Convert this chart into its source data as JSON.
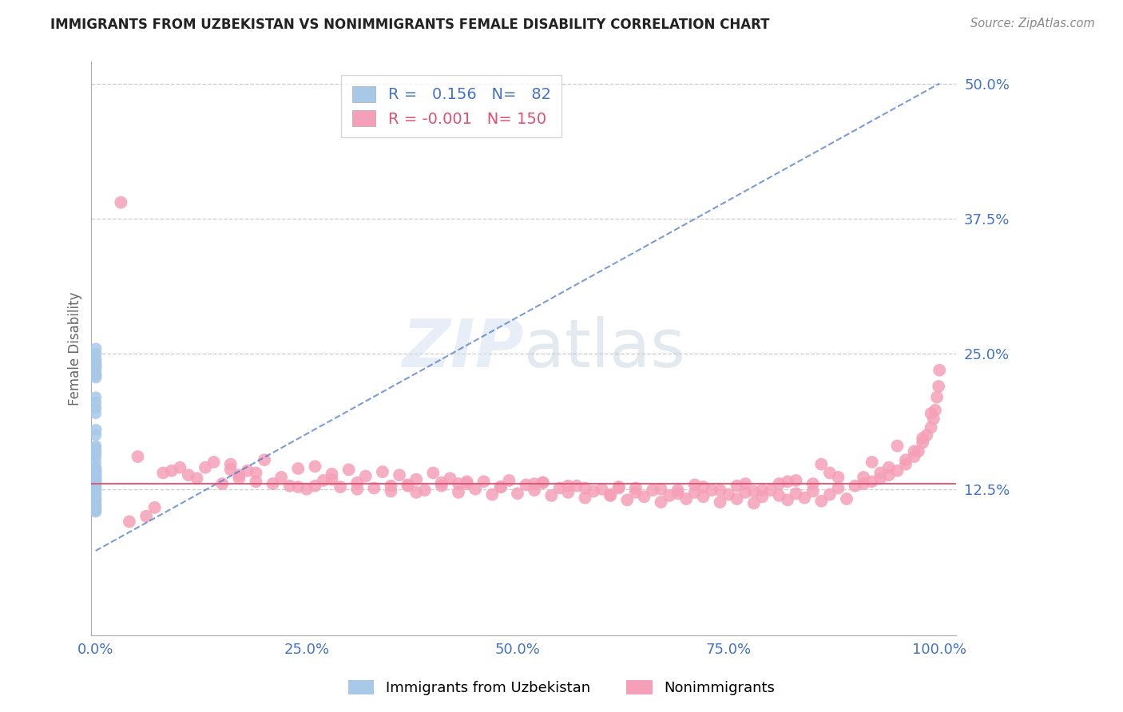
{
  "title": "IMMIGRANTS FROM UZBEKISTAN VS NONIMMIGRANTS FEMALE DISABILITY CORRELATION CHART",
  "source": "Source: ZipAtlas.com",
  "ylabel": "Female Disability",
  "r_immig": 0.156,
  "n_immig": 82,
  "r_nonimmig": -0.001,
  "n_nonimmig": 150,
  "xlim": [
    -0.005,
    1.02
  ],
  "ylim": [
    -0.01,
    0.52
  ],
  "yticks": [
    0.125,
    0.25,
    0.375,
    0.5
  ],
  "ytick_labels": [
    "12.5%",
    "25.0%",
    "37.5%",
    "50.0%"
  ],
  "xticks": [
    0,
    0.25,
    0.5,
    0.75,
    1.0
  ],
  "xtick_labels": [
    "0.0%",
    "25.0%",
    "50.0%",
    "75.0%",
    "100.0%"
  ],
  "immig_color": "#a8c8e8",
  "nonimmig_color": "#f5a0b8",
  "immig_line_color": "#4472c4",
  "nonimmig_line_color": "#e05070",
  "grid_color": "#cccccc",
  "background_color": "#ffffff",
  "title_color": "#222222",
  "axis_label_color": "#4472c4",
  "source_color": "#888888",
  "ylabel_color": "#666666",
  "watermark_color": "#d0dff0",
  "immig_scatter_x": [
    0.0002,
    0.0003,
    0.0001,
    0.0004,
    0.0002,
    0.0001,
    0.0002,
    0.0003,
    0.0001,
    0.0002,
    0.0003,
    0.0001,
    0.0002,
    0.0001,
    0.0003,
    0.0002,
    0.0001,
    0.0002,
    0.0003,
    0.0001,
    0.0002,
    0.0001,
    0.0003,
    0.0002,
    0.0001,
    0.0004,
    0.0002,
    0.0003,
    0.0001,
    0.0002,
    0.0003,
    0.0002,
    0.0001,
    0.0003,
    0.0002,
    0.0001,
    0.0002,
    0.0003,
    0.0001,
    0.0002,
    0.0003,
    0.0002,
    0.0001,
    0.0002,
    0.0003,
    0.0001,
    0.0002,
    0.0003,
    0.0001,
    0.0002,
    0.0003,
    0.0001,
    0.0002,
    0.0003,
    0.0001,
    0.0002,
    0.0001,
    0.0003,
    0.0002,
    0.0001,
    0.0002,
    0.0003,
    0.0001,
    0.0002,
    0.0003,
    0.0001,
    0.0004,
    0.0002,
    0.0001,
    0.0003,
    0.0005,
    0.0004,
    0.0003,
    0.0005,
    0.0006,
    0.0004,
    0.0005,
    0.0003,
    0.0002,
    0.0004,
    0.0003,
    0.0005
  ],
  "immig_scatter_y": [
    0.13,
    0.135,
    0.128,
    0.132,
    0.125,
    0.127,
    0.14,
    0.138,
    0.133,
    0.136,
    0.142,
    0.129,
    0.131,
    0.126,
    0.134,
    0.137,
    0.143,
    0.139,
    0.141,
    0.128,
    0.13,
    0.135,
    0.125,
    0.127,
    0.132,
    0.145,
    0.138,
    0.133,
    0.129,
    0.131,
    0.136,
    0.142,
    0.127,
    0.134,
    0.139,
    0.126,
    0.143,
    0.141,
    0.128,
    0.13,
    0.115,
    0.112,
    0.118,
    0.11,
    0.116,
    0.113,
    0.119,
    0.111,
    0.117,
    0.114,
    0.108,
    0.12,
    0.109,
    0.107,
    0.121,
    0.106,
    0.122,
    0.105,
    0.123,
    0.104,
    0.155,
    0.16,
    0.15,
    0.165,
    0.158,
    0.163,
    0.2,
    0.21,
    0.195,
    0.205,
    0.24,
    0.245,
    0.235,
    0.25,
    0.23,
    0.255,
    0.238,
    0.228,
    0.232,
    0.242,
    0.175,
    0.18
  ],
  "nonimmig_scatter_x": [
    0.05,
    0.08,
    0.1,
    0.12,
    0.14,
    0.15,
    0.16,
    0.17,
    0.18,
    0.19,
    0.2,
    0.22,
    0.23,
    0.24,
    0.25,
    0.26,
    0.27,
    0.28,
    0.29,
    0.3,
    0.31,
    0.32,
    0.33,
    0.34,
    0.35,
    0.36,
    0.37,
    0.38,
    0.39,
    0.4,
    0.41,
    0.42,
    0.43,
    0.44,
    0.45,
    0.46,
    0.47,
    0.48,
    0.49,
    0.5,
    0.51,
    0.52,
    0.53,
    0.54,
    0.55,
    0.56,
    0.57,
    0.58,
    0.59,
    0.6,
    0.61,
    0.62,
    0.63,
    0.64,
    0.65,
    0.66,
    0.67,
    0.68,
    0.69,
    0.7,
    0.71,
    0.72,
    0.73,
    0.74,
    0.75,
    0.76,
    0.77,
    0.78,
    0.79,
    0.8,
    0.81,
    0.82,
    0.83,
    0.84,
    0.85,
    0.86,
    0.87,
    0.88,
    0.89,
    0.9,
    0.91,
    0.92,
    0.93,
    0.94,
    0.95,
    0.96,
    0.97,
    0.975,
    0.98,
    0.985,
    0.99,
    0.993,
    0.995,
    0.997,
    0.999,
    1.0,
    0.13,
    0.21,
    0.37,
    0.44,
    0.11,
    0.31,
    0.48,
    0.53,
    0.62,
    0.71,
    0.79,
    0.83,
    0.91,
    0.96,
    0.19,
    0.28,
    0.35,
    0.52,
    0.67,
    0.72,
    0.78,
    0.85,
    0.93,
    0.98,
    0.17,
    0.26,
    0.43,
    0.58,
    0.69,
    0.76,
    0.82,
    0.88,
    0.94,
    0.97,
    0.09,
    0.24,
    0.41,
    0.56,
    0.64,
    0.74,
    0.81,
    0.87,
    0.92,
    0.99,
    0.06,
    0.03,
    0.04,
    0.07,
    0.16,
    0.38,
    0.61,
    0.77,
    0.86,
    0.95
  ],
  "nonimmig_scatter_y": [
    0.155,
    0.14,
    0.145,
    0.135,
    0.15,
    0.13,
    0.148,
    0.138,
    0.142,
    0.132,
    0.152,
    0.136,
    0.128,
    0.144,
    0.125,
    0.146,
    0.133,
    0.139,
    0.127,
    0.143,
    0.131,
    0.137,
    0.126,
    0.141,
    0.123,
    0.138,
    0.129,
    0.134,
    0.124,
    0.14,
    0.128,
    0.135,
    0.122,
    0.13,
    0.125,
    0.132,
    0.12,
    0.127,
    0.133,
    0.121,
    0.129,
    0.124,
    0.131,
    0.119,
    0.126,
    0.122,
    0.128,
    0.117,
    0.123,
    0.125,
    0.12,
    0.127,
    0.115,
    0.122,
    0.118,
    0.124,
    0.113,
    0.119,
    0.121,
    0.116,
    0.122,
    0.118,
    0.124,
    0.113,
    0.12,
    0.116,
    0.122,
    0.112,
    0.118,
    0.124,
    0.119,
    0.115,
    0.121,
    0.117,
    0.123,
    0.114,
    0.12,
    0.126,
    0.116,
    0.128,
    0.13,
    0.132,
    0.135,
    0.138,
    0.142,
    0.148,
    0.155,
    0.16,
    0.168,
    0.175,
    0.182,
    0.19,
    0.198,
    0.21,
    0.22,
    0.235,
    0.145,
    0.13,
    0.128,
    0.132,
    0.138,
    0.125,
    0.127,
    0.131,
    0.126,
    0.129,
    0.124,
    0.133,
    0.136,
    0.152,
    0.14,
    0.134,
    0.128,
    0.13,
    0.125,
    0.127,
    0.123,
    0.13,
    0.14,
    0.172,
    0.135,
    0.128,
    0.13,
    0.126,
    0.124,
    0.128,
    0.132,
    0.136,
    0.145,
    0.16,
    0.142,
    0.127,
    0.131,
    0.128,
    0.126,
    0.124,
    0.13,
    0.14,
    0.15,
    0.195,
    0.1,
    0.39,
    0.095,
    0.108,
    0.143,
    0.122,
    0.119,
    0.13,
    0.148,
    0.165
  ],
  "immig_trend_x": [
    0.0,
    1.0
  ],
  "immig_trend_y": [
    0.068,
    0.5
  ],
  "nonimmig_trend_y": 0.13
}
